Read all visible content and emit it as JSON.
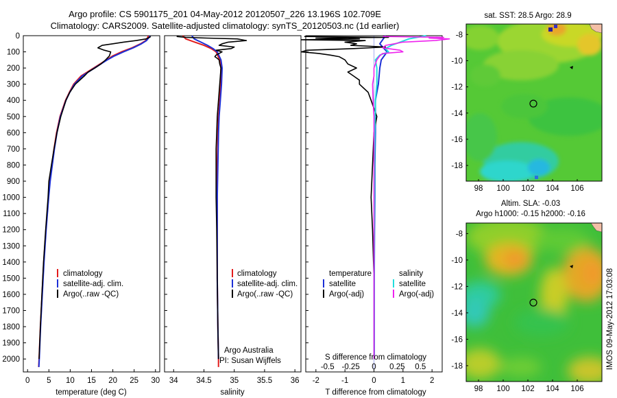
{
  "header": {
    "line1": "Argo profile: CS 5901175_201 04-May-2012 20120507_226 13.196S 102.709E",
    "line2": "Climatology: CARS2009. Satellite-adjusted climatology: synTS_20120503.nc (1d earlier)"
  },
  "watermark": "IMOS 09-May-2012 17:03:08",
  "colors": {
    "climatology": "#e21b1b",
    "satellite": "#1c2fd6",
    "argo": "#000000",
    "sat_salinity": "#22dddd",
    "argo_salinity": "#ee22ee"
  },
  "chart_data": [
    {
      "type": "line",
      "panel": "temperature",
      "xlabel": "temperature (deg C)",
      "ylabel": "",
      "xlim": [
        -1,
        31
      ],
      "ylim": [
        2080,
        0
      ],
      "xticks": [
        0,
        5,
        10,
        15,
        20,
        25,
        30
      ],
      "yticks": [
        0,
        100,
        200,
        300,
        400,
        500,
        600,
        700,
        800,
        900,
        1000,
        1100,
        1200,
        1300,
        1400,
        1500,
        1600,
        1700,
        1800,
        1900,
        2000
      ],
      "legend": [
        "climatology",
        "satellite-adj. clim.",
        "Argo(..raw -QC)"
      ],
      "legend_position": "bottom-left",
      "series": [
        {
          "name": "climatology",
          "depth": [
            0,
            10,
            30,
            50,
            75,
            100,
            125,
            150,
            175,
            200,
            250,
            300,
            350,
            400,
            500,
            600,
            700,
            800,
            900,
            1000,
            1200,
            1400,
            1600,
            1800,
            2000,
            2050
          ],
          "values": [
            28.3,
            28.2,
            27.7,
            26.5,
            24.5,
            22,
            20,
            18.5,
            17,
            15.5,
            12.5,
            10.8,
            9.8,
            8.9,
            7.6,
            6.8,
            6.2,
            5.7,
            5.2,
            4.9,
            4.3,
            3.8,
            3.4,
            3.0,
            2.7,
            2.6
          ]
        },
        {
          "name": "satellite-adj. clim.",
          "depth": [
            0,
            10,
            30,
            50,
            75,
            100,
            125,
            150,
            175,
            200,
            250,
            300,
            350,
            400,
            500,
            600,
            700,
            800,
            900,
            1000,
            1200,
            1400,
            1600,
            1800,
            2000,
            2050
          ],
          "values": [
            28.7,
            28.5,
            27.9,
            26.7,
            24.8,
            22.5,
            20.4,
            18.7,
            17.2,
            15.7,
            12.8,
            11.0,
            9.9,
            9.0,
            7.7,
            6.9,
            6.3,
            5.8,
            5.3,
            4.95,
            4.35,
            3.85,
            3.45,
            3.05,
            2.75,
            2.65
          ]
        },
        {
          "name": "Argo(..raw -QC)",
          "depth": [
            5,
            10,
            20,
            30,
            40,
            50,
            60,
            75,
            90,
            100,
            125,
            150,
            175,
            200,
            225,
            250,
            300,
            350,
            400,
            500,
            600,
            700,
            800,
            900,
            1000,
            1200,
            1400,
            1600,
            1800,
            2000
          ],
          "values": [
            28.9,
            28.6,
            27.8,
            25.5,
            22.5,
            20.0,
            17.5,
            16.5,
            18.0,
            19.5,
            19.2,
            18.3,
            17.2,
            15.8,
            14.2,
            13.3,
            11.2,
            9.9,
            9.0,
            7.8,
            6.9,
            6.2,
            5.6,
            5.0,
            4.8,
            4.25,
            3.75,
            3.35,
            3.0,
            2.7
          ]
        }
      ]
    },
    {
      "type": "line",
      "panel": "salinity",
      "xlabel": "salinity",
      "ylabel": "",
      "xlim": [
        33.85,
        36.1
      ],
      "ylim": [
        2080,
        0
      ],
      "xticks": [
        34,
        34.5,
        35,
        35.5,
        36
      ],
      "legend": [
        "climatology",
        "satellite-adj. clim.",
        "Argo(..raw -QC)"
      ],
      "legend_position": "bottom-right",
      "annotation": [
        "Argo Australia",
        "PI: Susan Wijffels"
      ],
      "series": [
        {
          "name": "climatology",
          "depth": [
            0,
            20,
            40,
            60,
            80,
            100,
            150,
            200,
            300,
            400,
            500,
            600,
            800,
            1000,
            1200,
            1500,
            1800,
            2000,
            2050
          ],
          "values": [
            34.15,
            34.2,
            34.35,
            34.5,
            34.62,
            34.7,
            34.76,
            34.78,
            34.77,
            34.76,
            34.74,
            34.73,
            34.72,
            34.72,
            34.72,
            34.72,
            34.73,
            34.74,
            34.74
          ]
        },
        {
          "name": "satellite-adj. clim.",
          "depth": [
            0,
            20,
            40,
            60,
            80,
            100,
            150,
            200,
            300,
            400,
            500,
            600,
            800,
            1000,
            1200,
            1500,
            1800,
            2000
          ],
          "values": [
            34.3,
            34.34,
            34.45,
            34.56,
            34.65,
            34.72,
            34.78,
            34.8,
            34.79,
            34.77,
            34.75,
            34.74,
            34.73,
            34.72,
            34.72,
            34.72,
            34.73,
            34.74
          ]
        },
        {
          "name": "Argo(..raw -QC)",
          "depth": [
            5,
            10,
            15,
            20,
            30,
            40,
            50,
            60,
            70,
            80,
            90,
            100,
            110,
            120,
            130,
            140,
            150,
            175,
            200,
            250,
            300,
            400,
            500,
            600,
            700,
            800,
            1000,
            1200,
            1500,
            1800,
            2000
          ],
          "values": [
            34.05,
            34.2,
            34.55,
            35.05,
            35.2,
            34.9,
            34.8,
            34.75,
            35.0,
            34.95,
            34.7,
            34.8,
            34.75,
            34.7,
            34.68,
            34.72,
            34.75,
            34.76,
            34.78,
            34.77,
            34.76,
            34.74,
            34.72,
            34.71,
            34.7,
            34.7,
            34.7,
            34.71,
            34.72,
            34.73,
            34.74
          ]
        }
      ]
    },
    {
      "type": "line",
      "panel": "difference",
      "xlabel": "T difference from climatology",
      "xlabel_top": "S difference from climatology",
      "xlim": [
        -2.35,
        2.35
      ],
      "ylim": [
        2080,
        0
      ],
      "xticks": [
        -2,
        -1,
        0,
        1,
        2
      ],
      "xticks_top_labels": [
        "-0.5",
        "-0.25",
        "0",
        "0.25",
        "0.5"
      ],
      "legend": [
        {
          "group": "temperature",
          "items": [
            "satellite",
            "Argo(-adj)"
          ]
        },
        {
          "group": "salinity",
          "items": [
            "satellite",
            "Argo(-adj)"
          ]
        }
      ],
      "series": [
        {
          "name": "temperature satellite",
          "depth": [
            0,
            50,
            100,
            150,
            200,
            300,
            400,
            600,
            800,
            1000,
            1200,
            1500,
            1800,
            2000
          ],
          "values": [
            0.4,
            0.2,
            0.45,
            0.25,
            0.2,
            0.15,
            0.05,
            0.05,
            0.03,
            0.03,
            0.02,
            0.01,
            0.01,
            0.01
          ]
        },
        {
          "name": "temperature Argo(-adj)",
          "depth": [
            5,
            10,
            15,
            20,
            25,
            30,
            40,
            50,
            60,
            70,
            80,
            90,
            100,
            110,
            120,
            130,
            150,
            175,
            200,
            225,
            250,
            275,
            300,
            350,
            400,
            500,
            600,
            800,
            1000,
            1200,
            1500,
            1800,
            2000
          ],
          "values": [
            -2.4,
            0.5,
            -2.0,
            -0.5,
            -2.5,
            -0.3,
            -1.0,
            -0.6,
            -0.8,
            0.4,
            -0.7,
            -2.3,
            -2.5,
            -1.9,
            -1.5,
            -1.2,
            -1.0,
            -0.9,
            -0.6,
            -0.9,
            -0.7,
            -0.5,
            -0.5,
            -0.2,
            -0.1,
            0.1,
            0.0,
            -0.05,
            -0.1,
            -0.05,
            0.0,
            0.0,
            0.0
          ]
        },
        {
          "name": "salinity satellite",
          "depth": [
            0,
            20,
            40,
            60,
            80,
            100,
            120,
            150,
            200,
            300,
            400,
            600,
            800,
            1000,
            1200,
            1500,
            1800,
            2000
          ],
          "values": [
            1.8,
            1.2,
            0.9,
            0.6,
            0.4,
            0.5,
            0.2,
            0.05,
            0.1,
            0.1,
            0.05,
            0.03,
            0.02,
            0.02,
            0.01,
            0.0,
            0.0,
            0.0
          ]
        },
        {
          "name": "salinity Argo(-adj)",
          "depth": [
            5,
            10,
            15,
            20,
            30,
            40,
            50,
            60,
            75,
            90,
            100,
            110,
            125,
            150,
            200,
            250,
            300,
            400,
            500,
            600,
            800,
            1000,
            1200,
            1500,
            1800,
            2000
          ],
          "values": [
            0.3,
            2.4,
            1.9,
            2.6,
            2.1,
            1.0,
            0.7,
            0.4,
            0.3,
            0.9,
            1.0,
            0.3,
            0.2,
            0.1,
            0.0,
            0.0,
            -0.05,
            -0.03,
            0.0,
            0.0,
            0.0,
            0.0,
            0.0,
            0.0,
            0.0,
            0.0
          ]
        }
      ]
    },
    {
      "type": "heatmap",
      "panel": "sst_map",
      "title": "sat. SST: 28.5 Argo: 28.9",
      "xlim": [
        97,
        108
      ],
      "ylim": [
        -19.2,
        -7.2
      ],
      "xticks": [
        98,
        100,
        102,
        104,
        106
      ],
      "yticks": [
        -8,
        -10,
        -12,
        -14,
        -16,
        -18
      ],
      "marker": {
        "lon": 102.709,
        "lat": -13.196
      }
    },
    {
      "type": "heatmap",
      "panel": "sla_map",
      "title_lines": [
        "Altim. SLA: -0.03",
        "Argo h1000: -0.15 h2000: -0.16"
      ],
      "xlim": [
        97,
        108
      ],
      "ylim": [
        -19.2,
        -7.2
      ],
      "xticks": [
        98,
        100,
        102,
        104,
        106
      ],
      "yticks": [
        -8,
        -10,
        -12,
        -14,
        -16,
        -18
      ],
      "marker": {
        "lon": 102.709,
        "lat": -13.196
      }
    }
  ]
}
